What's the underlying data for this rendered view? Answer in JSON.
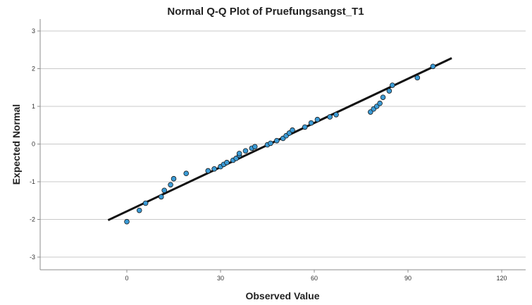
{
  "chart_data": {
    "type": "scatter",
    "title": "Normal Q-Q Plot of Pruefungsangst_T1",
    "xlabel": "Observed Value",
    "ylabel": "Expected Normal",
    "xlim": [
      -30,
      130
    ],
    "ylim": [
      -3.3,
      3.3
    ],
    "xticks": [
      0,
      30,
      60,
      90,
      120
    ],
    "xtick_labels": [
      "0",
      "30",
      "60",
      "90",
      "120"
    ],
    "yticks": [
      3,
      2,
      1,
      0,
      -1,
      -2,
      -3
    ],
    "ytick_labels": [
      "3",
      "2",
      "1",
      "0",
      "-1",
      "-2",
      "-3"
    ],
    "grid": "horizontal",
    "points": [
      {
        "x": 0,
        "y": -2.06
      },
      {
        "x": 4,
        "y": -1.76
      },
      {
        "x": 6,
        "y": -1.57
      },
      {
        "x": 11,
        "y": -1.4
      },
      {
        "x": 12,
        "y": -1.23
      },
      {
        "x": 14,
        "y": -1.08
      },
      {
        "x": 15,
        "y": -0.92
      },
      {
        "x": 19,
        "y": -0.78
      },
      {
        "x": 26,
        "y": -0.71
      },
      {
        "x": 28,
        "y": -0.66
      },
      {
        "x": 30,
        "y": -0.6
      },
      {
        "x": 31,
        "y": -0.54
      },
      {
        "x": 32,
        "y": -0.49
      },
      {
        "x": 34,
        "y": -0.43
      },
      {
        "x": 35,
        "y": -0.38
      },
      {
        "x": 36,
        "y": -0.3
      },
      {
        "x": 36,
        "y": -0.25
      },
      {
        "x": 38,
        "y": -0.18
      },
      {
        "x": 40,
        "y": -0.11
      },
      {
        "x": 41,
        "y": -0.07
      },
      {
        "x": 45,
        "y": -0.02
      },
      {
        "x": 46,
        "y": 0.02
      },
      {
        "x": 48,
        "y": 0.09
      },
      {
        "x": 50,
        "y": 0.15
      },
      {
        "x": 51,
        "y": 0.22
      },
      {
        "x": 52,
        "y": 0.29
      },
      {
        "x": 53,
        "y": 0.37
      },
      {
        "x": 57,
        "y": 0.45
      },
      {
        "x": 59,
        "y": 0.56
      },
      {
        "x": 61,
        "y": 0.65
      },
      {
        "x": 65,
        "y": 0.72
      },
      {
        "x": 67,
        "y": 0.78
      },
      {
        "x": 78,
        "y": 0.85
      },
      {
        "x": 79,
        "y": 0.93
      },
      {
        "x": 80,
        "y": 1.0
      },
      {
        "x": 81,
        "y": 1.08
      },
      {
        "x": 82,
        "y": 1.24
      },
      {
        "x": 84,
        "y": 1.41
      },
      {
        "x": 85,
        "y": 1.56
      },
      {
        "x": 93,
        "y": 1.76
      },
      {
        "x": 98,
        "y": 2.06
      }
    ],
    "reference_line": {
      "x1": -6,
      "y1": -2.02,
      "x2": 104,
      "y2": 2.28
    },
    "colors": {
      "point_fill": "#3b9bd6",
      "point_stroke": "#1a1a1a",
      "line": "#111111",
      "grid": "#c9c9c9"
    }
  }
}
